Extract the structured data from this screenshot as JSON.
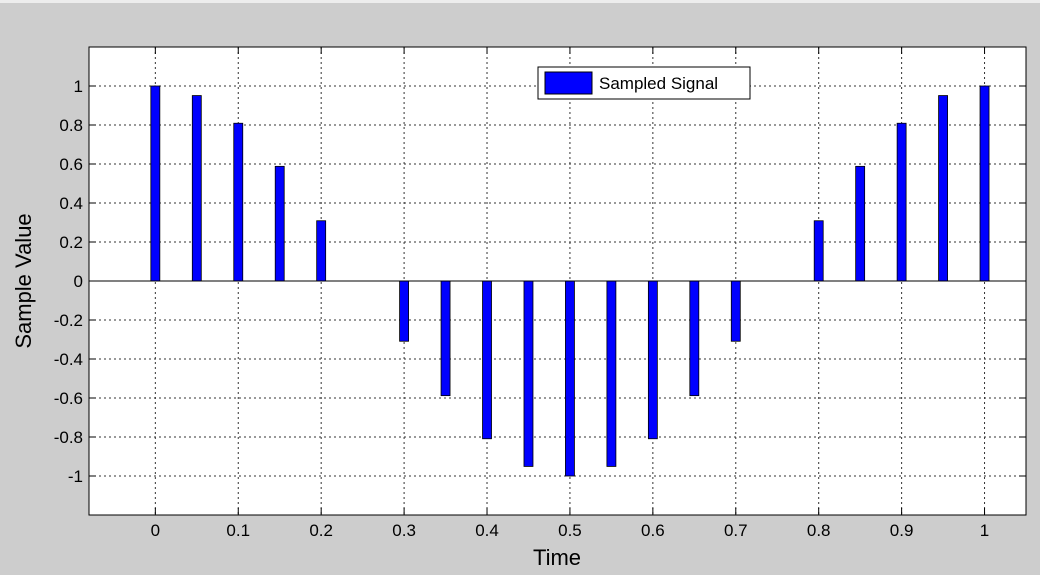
{
  "colors": {
    "figure_bg": "#cdcdcd",
    "axes_bg": "#ffffff",
    "bar": "#0000ff",
    "grid": "#333333"
  },
  "chart_data": {
    "type": "bar",
    "title": "",
    "xlabel": "Time",
    "ylabel": "Sample Value",
    "xlim": [
      -0.08,
      1.05
    ],
    "ylim": [
      -1.2,
      1.2
    ],
    "grid": true,
    "legend_position": "top-center",
    "xticks": [
      0,
      0.1,
      0.2,
      0.3,
      0.4,
      0.5,
      0.6,
      0.7,
      0.8,
      0.9,
      1
    ],
    "xtick_labels": [
      "0",
      "0.1",
      "0.2",
      "0.3",
      "0.4",
      "0.5",
      "0.6",
      "0.7",
      "0.8",
      "0.9",
      "1"
    ],
    "yticks": [
      -1,
      -0.8,
      -0.6,
      -0.4,
      -0.2,
      0,
      0.2,
      0.4,
      0.6,
      0.8,
      1
    ],
    "ytick_labels": [
      "-1",
      "-0.8",
      "-0.6",
      "-0.4",
      "-0.2",
      "0",
      "0.2",
      "0.4",
      "0.6",
      "0.8",
      "1"
    ],
    "series": [
      {
        "name": "Sampled Signal",
        "color": "#0000ff",
        "x": [
          0,
          0.05,
          0.1,
          0.15,
          0.2,
          0.25,
          0.3,
          0.35,
          0.4,
          0.45,
          0.5,
          0.55,
          0.6,
          0.65,
          0.7,
          0.75,
          0.8,
          0.85,
          0.9,
          0.95,
          1
        ],
        "values": [
          1,
          0.951,
          0.809,
          0.588,
          0.309,
          0,
          -0.309,
          -0.588,
          -0.809,
          -0.951,
          -1,
          -0.951,
          -0.809,
          -0.588,
          -0.309,
          0,
          0.309,
          0.588,
          0.809,
          0.951,
          1
        ]
      }
    ]
  }
}
